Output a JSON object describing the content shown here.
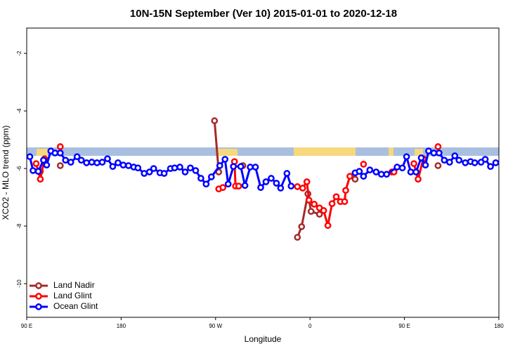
{
  "chart_data": {
    "type": "line",
    "title": "10N-15N September (Ver 10)   2015-01-01 to 2020-12-18",
    "x_label": "Longitude",
    "y_label": "XCO2 - MLO trend (ppm)",
    "xlim": [
      90,
      540
    ],
    "ylim": [
      -11.17,
      -1.12
    ],
    "xticks": [
      {
        "value": 90,
        "label": "90 E"
      },
      {
        "value": 180,
        "label": "180"
      },
      {
        "value": 270,
        "label": "90 W"
      },
      {
        "value": 360,
        "label": "0"
      },
      {
        "value": 450,
        "label": "90 E"
      },
      {
        "value": 540,
        "label": "180"
      }
    ],
    "yticks": [
      -2,
      -4,
      -6,
      -8,
      -10
    ],
    "legend": "bottom-left",
    "series": [
      {
        "name": "Land Nadir",
        "color": "#a52a2a",
        "x": [
          103,
          null,
          122,
          null,
          269,
          273,
          null,
          296,
          null,
          348,
          352,
          358,
          361,
          369,
          null,
          403,
          null,
          482
        ],
        "values": [
          -6.1,
          null,
          -5.9,
          null,
          -4.34,
          -6.12,
          null,
          -5.9,
          null,
          -8.39,
          -8.02,
          -6.88,
          -7.49,
          -7.59,
          null,
          -6.37,
          null,
          -5.9
        ]
      },
      {
        "name": "Land Glint",
        "color": "#ff0000",
        "x": [
          99,
          103,
          107,
          null,
          122,
          null,
          273,
          277,
          null,
          288,
          289,
          292,
          null,
          348,
          353,
          357,
          359,
          364,
          369,
          373,
          377,
          381,
          385,
          389,
          393,
          394,
          398,
          null,
          411,
          null,
          438,
          440,
          null,
          459,
          463,
          468,
          null,
          482
        ],
        "values": [
          -5.83,
          -6.37,
          -5.66,
          null,
          -5.24,
          null,
          -6.71,
          -6.66,
          null,
          -5.76,
          -6.61,
          -6.61,
          null,
          -6.63,
          -6.68,
          -6.46,
          -7.1,
          -7.24,
          -7.37,
          -7.46,
          -7.98,
          -7.22,
          -6.98,
          -7.15,
          -7.15,
          -6.76,
          -6.27,
          null,
          -5.85,
          null,
          -6.12,
          -6.12,
          null,
          -5.83,
          -6.37,
          -5.66,
          null,
          -5.24
        ]
      },
      {
        "name": "Ocean Glint",
        "color": "#0000ff",
        "x": [
          93,
          96,
          101,
          106,
          109,
          113,
          117,
          122,
          127,
          132,
          138,
          142,
          147,
          152,
          157,
          162,
          167,
          172,
          177,
          182,
          187,
          192,
          196,
          202,
          207,
          211,
          217,
          221,
          227,
          231,
          236,
          241,
          246,
          251,
          256,
          261,
          266,
          274,
          279,
          282,
          287,
          294,
          298,
          303,
          308,
          313,
          318,
          323,
          328,
          332,
          338,
          342,
          null,
          403,
          407,
          411,
          417,
          423,
          428,
          433,
          443,
          448,
          452,
          456,
          461,
          466,
          470,
          473,
          478,
          483,
          488,
          493,
          498,
          502,
          508,
          513,
          517,
          523,
          527,
          532,
          537
        ],
        "values": [
          -5.59,
          -6.07,
          -6.1,
          -5.71,
          -5.88,
          -5.39,
          -5.46,
          -5.46,
          -5.71,
          -5.78,
          -5.59,
          -5.71,
          -5.8,
          -5.78,
          -5.8,
          -5.78,
          -5.66,
          -5.93,
          -5.8,
          -5.88,
          -5.9,
          -5.95,
          -5.98,
          -6.17,
          -6.12,
          -6.0,
          -6.15,
          -6.17,
          -6.0,
          -5.98,
          -5.95,
          -6.12,
          -5.98,
          -6.07,
          -6.34,
          -6.54,
          -6.29,
          -5.9,
          -5.68,
          -6.54,
          -5.93,
          -5.93,
          -6.59,
          -5.95,
          -5.95,
          -6.66,
          -6.46,
          -6.34,
          -6.51,
          -6.68,
          -6.17,
          -6.61,
          null,
          -6.15,
          -6.1,
          -6.27,
          -6.05,
          -6.12,
          -6.2,
          -6.2,
          -5.95,
          -5.98,
          -5.59,
          -6.12,
          -6.12,
          -5.63,
          -5.88,
          -5.39,
          -5.46,
          -5.46,
          -5.71,
          -5.78,
          -5.56,
          -5.71,
          -5.8,
          -5.76,
          -5.8,
          -5.78,
          -5.68,
          -5.93,
          -5.8
        ]
      }
    ]
  }
}
